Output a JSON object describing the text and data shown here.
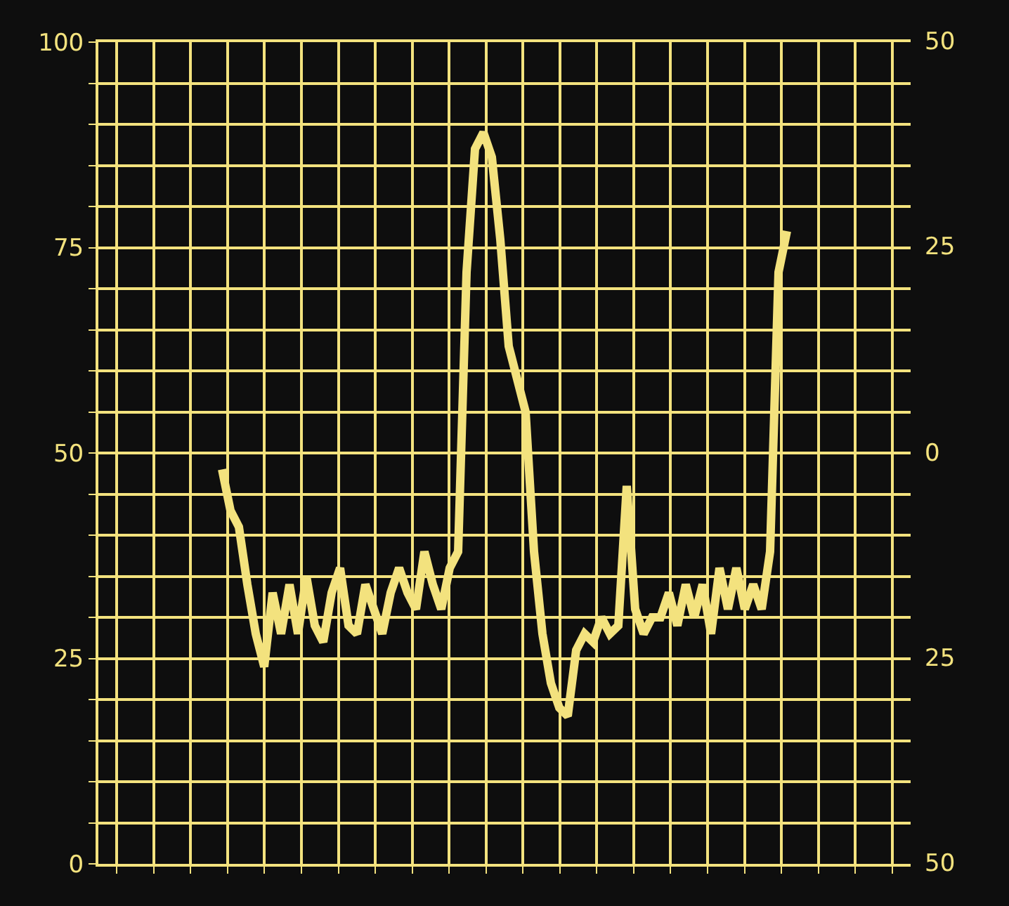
{
  "chart_data": {
    "type": "line",
    "categories": [
      null,
      null,
      null,
      null,
      null,
      null,
      null,
      null,
      null,
      null,
      null,
      null,
      null,
      null,
      null,
      null,
      null,
      null,
      null,
      null,
      null,
      null,
      null,
      null,
      null,
      null,
      null,
      null,
      null,
      null,
      null,
      null,
      null,
      null,
      null,
      null,
      null,
      null,
      null,
      null,
      null,
      null,
      null,
      null,
      null,
      null,
      null,
      null,
      null,
      null,
      null,
      null,
      null,
      null,
      null,
      null,
      null,
      null,
      null,
      null,
      null,
      null,
      null,
      null,
      null,
      null,
      null,
      null
    ],
    "series": [
      {
        "color": "#f3e27e",
        "values": [
          48,
          43,
          41,
          34,
          28,
          24,
          33,
          28,
          34,
          28,
          35,
          29,
          27,
          33,
          36,
          29,
          28,
          34,
          31,
          28,
          33,
          36,
          33,
          31,
          38,
          34,
          31,
          36,
          38,
          72,
          87,
          89,
          86,
          76,
          63,
          59,
          55,
          38,
          28,
          22,
          19,
          18,
          26,
          28,
          27,
          30,
          28,
          29,
          46,
          31,
          28,
          30,
          30,
          33,
          29,
          34,
          30,
          34,
          28,
          36,
          31,
          36,
          31,
          34,
          31,
          38,
          72,
          77
        ]
      }
    ],
    "ylim": [
      0,
      100
    ],
    "yticks": [
      0,
      {
        "value": 5,
        "label": null
      },
      {
        "value": 10,
        "label": null
      },
      {
        "value": 15,
        "label": null
      },
      {
        "value": 20,
        "label": null
      },
      25,
      {
        "value": 30,
        "label": null
      },
      {
        "value": 35,
        "label": null
      },
      {
        "value": 40,
        "label": null
      },
      {
        "value": 45,
        "label": null
      },
      50,
      {
        "value": 55,
        "label": null
      },
      {
        "value": 60,
        "label": null
      },
      {
        "value": 65,
        "label": null
      },
      {
        "value": 70,
        "label": null
      },
      75,
      {
        "value": 80,
        "label": null
      },
      {
        "value": 85,
        "label": null
      },
      {
        "value": 90,
        "label": null
      },
      {
        "value": 95,
        "label": null
      },
      100
    ],
    "annotations": [
      "50",
      "25",
      "0",
      "25",
      "50"
    ],
    "tick_labels": "y",
    "grid": true,
    "marker": "none",
    "line_style": "solid"
  }
}
